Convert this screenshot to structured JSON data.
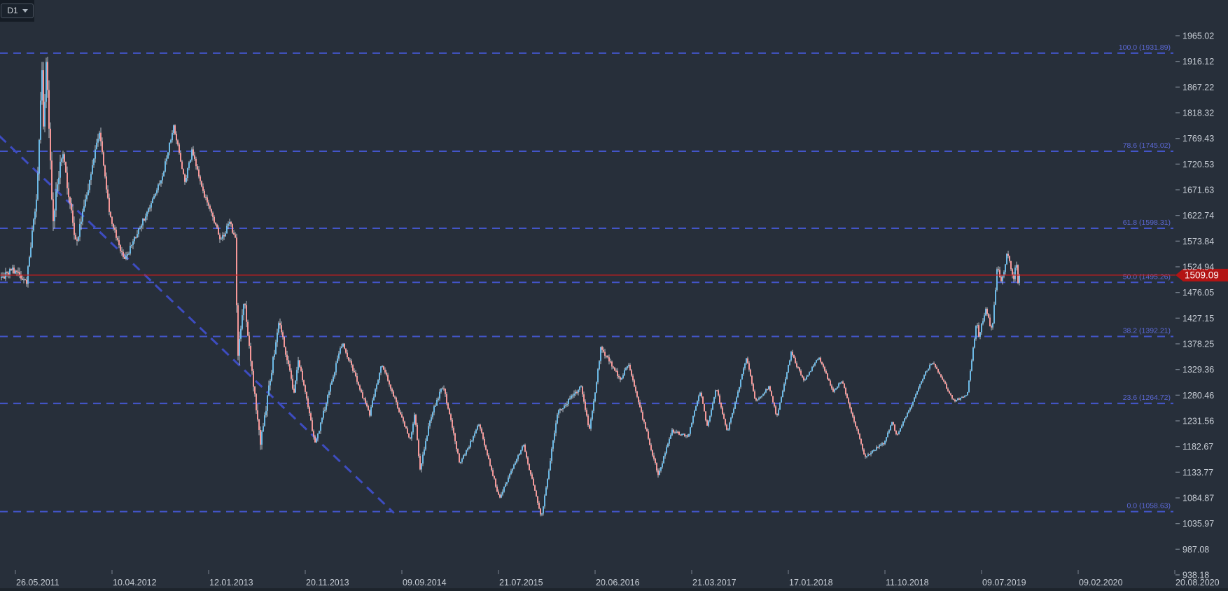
{
  "colors": {
    "background": "#272f3a",
    "panel": "#151c25",
    "axis_text": "#c7cdd5",
    "tick": "#78828d",
    "fib_line": "#4355c8",
    "fib_label": "#5b68d4",
    "trendline": "#3d4cc0",
    "price_line": "#cc1b1b",
    "price_tag": "#b31414",
    "price_tag_text": "#ffffff",
    "candle_up": "#6cb9e5",
    "candle_down": "#f59898",
    "wick": "#e3eaf1"
  },
  "chart_data": {
    "type": "candlestick",
    "timeframe": "D1",
    "current_price": 1509.09,
    "y_axis": {
      "min": 938.18,
      "max": 1965.02,
      "ticks": [
        1965.02,
        1916.12,
        1867.22,
        1818.32,
        1769.43,
        1720.53,
        1671.63,
        1622.74,
        1573.84,
        1524.94,
        1476.05,
        1427.15,
        1378.25,
        1329.36,
        1280.46,
        1231.56,
        1182.67,
        1133.77,
        1084.87,
        1035.97,
        987.08,
        938.18
      ]
    },
    "x_axis": {
      "ticks": [
        "26.05.2011",
        "10.04.2012",
        "12.01.2013",
        "20.11.2013",
        "09.09.2014",
        "21.07.2015",
        "20.06.2016",
        "21.03.2017",
        "17.01.2018",
        "11.10.2018",
        "09.07.2019",
        "09.02.2020",
        "20.08.2020"
      ]
    },
    "fibonacci_retracement": {
      "levels": [
        {
          "pct": 100.0,
          "price": 1931.89,
          "label": "100.0 (1931.89)"
        },
        {
          "pct": 78.6,
          "price": 1745.02,
          "label": "78.6 (1745.02)"
        },
        {
          "pct": 61.8,
          "price": 1598.31,
          "label": "61.8 (1598.31)"
        },
        {
          "pct": 50.0,
          "price": 1495.26,
          "label": "50.0 (1495.26)"
        },
        {
          "pct": 38.2,
          "price": 1392.21,
          "label": "38.2 (1392.21)"
        },
        {
          "pct": 23.6,
          "price": 1264.72,
          "label": "23.6 (1264.72)"
        },
        {
          "pct": 0.0,
          "price": 1058.63,
          "label": "0.0 (1058.63)"
        }
      ]
    },
    "trendline": {
      "style": "dashed",
      "from": {
        "date": "2011-04-03",
        "price": 1774
      },
      "to": {
        "date": "2014-08-16",
        "price": 1056
      }
    },
    "price_path": [
      {
        "d": "2011-04-20",
        "p": 1505,
        "v": 11
      },
      {
        "d": "2011-05-26",
        "p": 1522,
        "v": 12
      },
      {
        "d": "2011-07-01",
        "p": 1488,
        "v": 10
      },
      {
        "d": "2011-08-05",
        "p": 1660,
        "v": 16
      },
      {
        "d": "2011-08-22",
        "p": 1890,
        "v": 22
      },
      {
        "d": "2011-08-25",
        "p": 1762,
        "v": 22
      },
      {
        "d": "2011-09-06",
        "p": 1912,
        "v": 20
      },
      {
        "d": "2011-09-26",
        "p": 1622,
        "v": 26
      },
      {
        "d": "2011-10-28",
        "p": 1744,
        "v": 15
      },
      {
        "d": "2011-12-15",
        "p": 1568,
        "v": 16
      },
      {
        "d": "2012-02-28",
        "p": 1780,
        "v": 12
      },
      {
        "d": "2012-04-04",
        "p": 1622,
        "v": 10
      },
      {
        "d": "2012-05-16",
        "p": 1540,
        "v": 10
      },
      {
        "d": "2012-08-31",
        "p": 1692,
        "v": 8
      },
      {
        "d": "2012-10-04",
        "p": 1792,
        "v": 9
      },
      {
        "d": "2012-11-05",
        "p": 1683,
        "v": 8
      },
      {
        "d": "2012-11-26",
        "p": 1750,
        "v": 8
      },
      {
        "d": "2013-01-04",
        "p": 1650,
        "v": 9
      },
      {
        "d": "2013-02-21",
        "p": 1573,
        "v": 9
      },
      {
        "d": "2013-03-21",
        "p": 1612,
        "v": 8
      },
      {
        "d": "2013-04-09",
        "p": 1575,
        "v": 9
      },
      {
        "d": "2013-04-15",
        "p": 1352,
        "v": 24
      },
      {
        "d": "2013-05-06",
        "p": 1468,
        "v": 14
      },
      {
        "d": "2013-06-28",
        "p": 1192,
        "v": 14
      },
      {
        "d": "2013-08-28",
        "p": 1424,
        "v": 11
      },
      {
        "d": "2013-10-15",
        "p": 1277,
        "v": 9
      },
      {
        "d": "2013-10-28",
        "p": 1350,
        "v": 8
      },
      {
        "d": "2013-12-19",
        "p": 1188,
        "v": 8
      },
      {
        "d": "2014-03-14",
        "p": 1382,
        "v": 8
      },
      {
        "d": "2014-06-03",
        "p": 1244,
        "v": 6
      },
      {
        "d": "2014-07-10",
        "p": 1339,
        "v": 6
      },
      {
        "d": "2014-10-06",
        "p": 1192,
        "v": 7
      },
      {
        "d": "2014-10-21",
        "p": 1248,
        "v": 6
      },
      {
        "d": "2014-11-07",
        "p": 1142,
        "v": 7
      },
      {
        "d": "2014-12-09",
        "p": 1232,
        "v": 7
      },
      {
        "d": "2015-01-22",
        "p": 1300,
        "v": 7
      },
      {
        "d": "2015-03-17",
        "p": 1148,
        "v": 6
      },
      {
        "d": "2015-05-18",
        "p": 1225,
        "v": 5
      },
      {
        "d": "2015-07-24",
        "p": 1082,
        "v": 6
      },
      {
        "d": "2015-10-15",
        "p": 1187,
        "v": 5
      },
      {
        "d": "2015-12-17",
        "p": 1048,
        "v": 5
      },
      {
        "d": "2016-02-11",
        "p": 1246,
        "v": 8
      },
      {
        "d": "2016-05-02",
        "p": 1295,
        "v": 7
      },
      {
        "d": "2016-05-31",
        "p": 1210,
        "v": 6
      },
      {
        "d": "2016-07-06",
        "p": 1368,
        "v": 8
      },
      {
        "d": "2016-09-01",
        "p": 1308,
        "v": 6
      },
      {
        "d": "2016-09-22",
        "p": 1342,
        "v": 5
      },
      {
        "d": "2016-12-15",
        "p": 1128,
        "v": 7
      },
      {
        "d": "2017-01-24",
        "p": 1215,
        "v": 5
      },
      {
        "d": "2017-03-10",
        "p": 1200,
        "v": 5
      },
      {
        "d": "2017-04-17",
        "p": 1288,
        "v": 4
      },
      {
        "d": "2017-05-09",
        "p": 1218,
        "v": 4
      },
      {
        "d": "2017-06-06",
        "p": 1295,
        "v": 4
      },
      {
        "d": "2017-07-10",
        "p": 1210,
        "v": 4
      },
      {
        "d": "2017-09-08",
        "p": 1350,
        "v": 5
      },
      {
        "d": "2017-10-06",
        "p": 1270,
        "v": 4
      },
      {
        "d": "2017-11-17",
        "p": 1296,
        "v": 3
      },
      {
        "d": "2017-12-12",
        "p": 1238,
        "v": 4
      },
      {
        "d": "2018-01-25",
        "p": 1360,
        "v": 5
      },
      {
        "d": "2018-03-01",
        "p": 1306,
        "v": 4
      },
      {
        "d": "2018-04-11",
        "p": 1352,
        "v": 4
      },
      {
        "d": "2018-05-21",
        "p": 1288,
        "v": 4
      },
      {
        "d": "2018-06-14",
        "p": 1308,
        "v": 3
      },
      {
        "d": "2018-08-16",
        "p": 1165,
        "v": 5
      },
      {
        "d": "2018-10-09",
        "p": 1188,
        "v": 4
      },
      {
        "d": "2018-11-01",
        "p": 1233,
        "v": 4
      },
      {
        "d": "2018-11-13",
        "p": 1200,
        "v": 3
      },
      {
        "d": "2019-01-31",
        "p": 1322,
        "v": 4
      },
      {
        "d": "2019-02-20",
        "p": 1346,
        "v": 4
      },
      {
        "d": "2019-04-23",
        "p": 1268,
        "v": 3
      },
      {
        "d": "2019-05-30",
        "p": 1280,
        "v": 3
      },
      {
        "d": "2019-06-25",
        "p": 1422,
        "v": 7
      },
      {
        "d": "2019-07-01",
        "p": 1388,
        "v": 7
      },
      {
        "d": "2019-07-19",
        "p": 1446,
        "v": 7
      },
      {
        "d": "2019-08-01",
        "p": 1405,
        "v": 8
      },
      {
        "d": "2019-08-13",
        "p": 1520,
        "v": 9
      },
      {
        "d": "2019-08-23",
        "p": 1497,
        "v": 8
      },
      {
        "d": "2019-09-04",
        "p": 1552,
        "v": 9
      },
      {
        "d": "2019-09-18",
        "p": 1500,
        "v": 8
      },
      {
        "d": "2019-09-24",
        "p": 1532,
        "v": 7
      },
      {
        "d": "2019-10-01",
        "p": 1468,
        "v": 9
      },
      {
        "d": "2019-10-04",
        "p": 1509,
        "v": 8
      }
    ]
  }
}
